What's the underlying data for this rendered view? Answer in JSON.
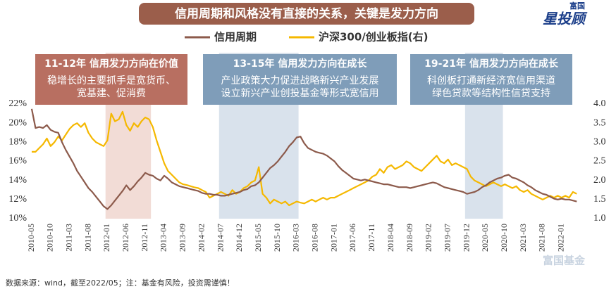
{
  "logo": {
    "top": "富国",
    "main": "星投顾"
  },
  "watermark": "富国基金",
  "source": "数据来源：wind，截至2022/05；注：基金有风险，投资需谨慎！",
  "chart_data": {
    "type": "line",
    "title": "信用周期和风格没有直接的关系，关键是发力方向",
    "grid": false,
    "annotations": [
      {
        "title": "11-12年 信用发力方向在价值",
        "lines": [
          "稳增长的主要抓手是宽货币、",
          "宽基建、促消费"
        ],
        "color": "#b86f61"
      },
      {
        "title": "13-15年 信用发力方向在成长",
        "lines": [
          "产业政策大力促进战略新兴产业发展",
          "设立新兴产业创投基金等形式宽信用"
        ],
        "color": "#7f9db9"
      },
      {
        "title": "19-21年 信用发力方向在成长",
        "lines": [
          "科创板打通新经济宽信用渠道",
          "绿色贷款等结构性信贷支持"
        ],
        "color": "#7f9db9"
      }
    ],
    "categories": [
      "2010-05",
      null,
      null,
      null,
      null,
      "2010-10",
      null,
      null,
      null,
      null,
      "2011-03",
      null,
      null,
      null,
      null,
      "2011-08",
      null,
      null,
      null,
      null,
      "2012-01",
      null,
      null,
      null,
      null,
      "2012-06",
      null,
      null,
      null,
      null,
      "2012-11",
      null,
      null,
      null,
      null,
      "2013-04",
      null,
      null,
      null,
      null,
      "2013-09",
      null,
      null,
      null,
      null,
      "2014-02",
      null,
      null,
      null,
      null,
      "2014-07",
      null,
      null,
      null,
      null,
      "2014-12",
      null,
      null,
      null,
      null,
      "2015-05",
      null,
      null,
      null,
      null,
      "2015-10",
      null,
      null,
      null,
      null,
      "2016-03",
      null,
      null,
      null,
      null,
      "2016-08",
      null,
      null,
      null,
      null,
      "2017-01",
      null,
      null,
      null,
      null,
      "2017-06",
      null,
      null,
      null,
      null,
      "2017-11",
      null,
      null,
      null,
      null,
      "2018-04",
      null,
      null,
      null,
      null,
      "2018-09",
      null,
      null,
      null,
      null,
      "2019-02",
      null,
      null,
      null,
      null,
      "2019-07",
      null,
      null,
      null,
      null,
      "2019-12",
      null,
      null,
      null,
      null,
      "2020-05",
      null,
      null,
      null,
      null,
      "2020-10",
      null,
      null,
      null,
      null,
      "2021-03",
      null,
      null,
      null,
      null,
      "2021-08",
      null,
      null,
      null,
      null,
      "2022-01",
      null,
      null,
      null,
      null
    ],
    "series": [
      {
        "name": "信用周期",
        "color": "#8c5a4b",
        "axis": "y",
        "values": [
          21.5,
          19.5,
          19.6,
          19.5,
          19.8,
          19.3,
          19.1,
          19.0,
          18.0,
          17.2,
          16.5,
          15.8,
          15.0,
          14.4,
          13.8,
          13.2,
          12.8,
          12.3,
          11.8,
          11.3,
          11.0,
          11.4,
          11.9,
          12.4,
          12.9,
          13.5,
          13.0,
          13.4,
          13.9,
          14.3,
          14.8,
          14.6,
          14.5,
          14.2,
          14.0,
          14.5,
          14.2,
          13.8,
          13.6,
          13.4,
          13.3,
          13.2,
          13.1,
          13.0,
          12.9,
          12.7,
          12.6,
          12.6,
          12.5,
          12.5,
          12.4,
          12.4,
          12.5,
          12.6,
          12.7,
          12.8,
          13.0,
          13.1,
          13.4,
          13.5,
          13.8,
          14.3,
          14.8,
          15.3,
          15.6,
          16.0,
          16.5,
          17.0,
          17.6,
          18.0,
          18.5,
          18.6,
          17.9,
          17.4,
          17.2,
          17.0,
          16.9,
          16.8,
          16.6,
          16.3,
          16.0,
          15.5,
          15.1,
          14.8,
          14.5,
          14.2,
          14.1,
          14.0,
          14.1,
          14.0,
          13.9,
          13.8,
          13.7,
          13.6,
          13.6,
          13.5,
          13.4,
          13.3,
          13.3,
          13.3,
          13.2,
          13.3,
          13.4,
          13.5,
          13.6,
          13.7,
          13.8,
          13.7,
          13.5,
          13.3,
          13.2,
          13.1,
          13.0,
          12.9,
          12.8,
          12.6,
          12.7,
          12.8,
          13.0,
          13.3,
          13.5,
          13.8,
          14.0,
          14.2,
          14.3,
          14.5,
          14.6,
          14.3,
          14.2,
          14.0,
          13.8,
          13.5,
          13.3,
          13.0,
          12.8,
          12.6,
          12.5,
          12.3,
          12.1,
          12.0,
          12.1,
          12.0,
          12.0,
          11.9,
          11.8
        ]
      },
      {
        "name": "沪深300/创业板指(右)",
        "color": "#f5b800",
        "axis": "y2",
        "values": [
          2.75,
          2.75,
          2.85,
          2.95,
          3.1,
          2.9,
          3.0,
          3.15,
          3.05,
          3.2,
          3.35,
          3.45,
          3.5,
          3.4,
          3.5,
          3.25,
          3.1,
          3.0,
          2.95,
          2.9,
          3.05,
          3.75,
          3.55,
          3.6,
          3.8,
          3.45,
          3.3,
          3.5,
          3.4,
          3.55,
          3.65,
          3.6,
          3.4,
          3.05,
          2.75,
          2.45,
          2.25,
          2.15,
          2.05,
          1.95,
          1.9,
          1.88,
          1.85,
          1.82,
          1.8,
          1.75,
          1.7,
          1.55,
          1.6,
          1.65,
          1.7,
          1.65,
          1.6,
          1.75,
          1.65,
          1.7,
          1.8,
          1.85,
          1.95,
          2.0,
          2.35,
          1.65,
          1.55,
          1.4,
          1.5,
          1.45,
          1.4,
          1.45,
          1.35,
          1.4,
          1.45,
          1.42,
          1.4,
          1.45,
          1.5,
          1.45,
          1.5,
          1.55,
          1.5,
          1.55,
          1.55,
          1.6,
          1.65,
          1.7,
          1.75,
          1.8,
          1.85,
          1.9,
          1.95,
          2.0,
          2.1,
          2.15,
          2.3,
          2.2,
          2.35,
          2.4,
          2.3,
          2.35,
          2.4,
          2.5,
          2.45,
          2.35,
          2.3,
          2.25,
          2.35,
          2.45,
          2.55,
          2.65,
          2.5,
          2.45,
          2.55,
          2.4,
          2.45,
          2.4,
          2.35,
          2.3,
          2.1,
          2.0,
          1.95,
          1.9,
          1.85,
          1.9,
          1.95,
          1.9,
          1.85,
          1.9,
          1.85,
          1.8,
          1.85,
          1.75,
          1.7,
          1.75,
          1.65,
          1.6,
          1.55,
          1.5,
          1.55,
          1.6,
          1.55,
          1.6,
          1.55,
          1.6,
          1.55,
          1.7,
          1.65
        ]
      }
    ],
    "ylim": [
      10,
      22
    ],
    "yticks": [
      {
        "value": 10,
        "label": "10%"
      },
      {
        "value": 12,
        "label": "12%"
      },
      {
        "value": 14,
        "label": "14%"
      },
      {
        "value": 16,
        "label": "16%"
      },
      {
        "value": 18,
        "label": "18%"
      },
      {
        "value": 20,
        "label": "20%"
      },
      {
        "value": 22,
        "label": "22%"
      }
    ],
    "y2lim": [
      1.0,
      4.0
    ],
    "y2ticks": [
      {
        "value": 1.0,
        "label": "1.0"
      },
      {
        "value": 1.5,
        "label": "1.5"
      },
      {
        "value": 2.0,
        "label": "2.0"
      },
      {
        "value": 2.5,
        "label": "2.5"
      },
      {
        "value": 3.0,
        "label": "3.0"
      },
      {
        "value": 3.5,
        "label": "3.5"
      },
      {
        "value": 4.0,
        "label": "4.0"
      }
    ]
  }
}
